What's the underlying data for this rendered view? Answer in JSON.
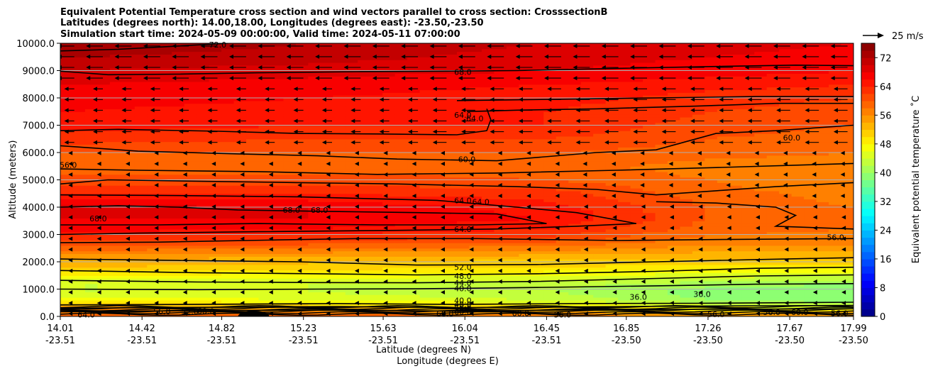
{
  "chart_data": {
    "type": "heatmap",
    "title_lines": [
      "Equivalent Potential Temperature cross section and wind vectors parallel to cross section: CrosssectionB",
      "Latitudes (degrees north): 14.00,18.00, Longitudes (degrees east): -23.50,-23.50",
      "Simulation start time: 2024-05-09 00:00:00, Valid time: 2024-05-11 07:00:00"
    ],
    "xlabel": "Latitude (degrees N)",
    "xlabel2": "Longitude (degrees E)",
    "ylabel": "Altitude (meters)",
    "ylim": [
      0,
      10000
    ],
    "xlim": [
      14.01,
      17.99
    ],
    "yticks": [
      "0.0",
      "1000.0",
      "2000.0",
      "3000.0",
      "4000.0",
      "5000.0",
      "6000.0",
      "7000.0",
      "8000.0",
      "9000.0",
      "10000.0"
    ],
    "xticks": [
      {
        "lat": "14.01",
        "lon": "-23.51"
      },
      {
        "lat": "14.42",
        "lon": "-23.51"
      },
      {
        "lat": "14.82",
        "lon": "-23.51"
      },
      {
        "lat": "15.23",
        "lon": "-23.51"
      },
      {
        "lat": "15.63",
        "lon": "-23.51"
      },
      {
        "lat": "16.04",
        "lon": "-23.51"
      },
      {
        "lat": "16.45",
        "lon": "-23.51"
      },
      {
        "lat": "16.85",
        "lon": "-23.50"
      },
      {
        "lat": "17.26",
        "lon": "-23.50"
      },
      {
        "lat": "17.67",
        "lon": "-23.50"
      },
      {
        "lat": "17.99",
        "lon": "-23.50"
      }
    ],
    "colorbar": {
      "label": "Equivalent potential temperature $^\\circ$C",
      "label_display": "Equivalent potential temperature ˚C",
      "min": 0,
      "max": 76,
      "step": 2,
      "ticks": [
        "0",
        "8",
        "16",
        "24",
        "32",
        "40",
        "48",
        "56",
        "64",
        "72"
      ]
    },
    "quiver_key": {
      "label": "25 m/s",
      "value": 25
    },
    "profile_heights": [
      0,
      300,
      600,
      900,
      1200,
      1500,
      1800,
      2100,
      2500,
      2800,
      3200,
      3600,
      4000,
      4500,
      5000,
      5500,
      6000,
      6500,
      7000,
      7500,
      8000,
      8500,
      9000,
      9500,
      10000
    ],
    "profiles": [
      {
        "x": 14.01,
        "theta_e": [
          60,
          56,
          48,
          44,
          44,
          48,
          52,
          54,
          59,
          62,
          67,
          68,
          69,
          64,
          61,
          58,
          60,
          63,
          65,
          66,
          67,
          68,
          70,
          72,
          74
        ]
      },
      {
        "x": 15.23,
        "theta_e": [
          60,
          54,
          46,
          44,
          44,
          47,
          51,
          53,
          58,
          62,
          66,
          68,
          68,
          64,
          61,
          59,
          60,
          62,
          64,
          65,
          66,
          67,
          69,
          71,
          72
        ]
      },
      {
        "x": 16.45,
        "theta_e": [
          58,
          52,
          44,
          42,
          43,
          46,
          50,
          52,
          57,
          61,
          64,
          66,
          65,
          63,
          60,
          59,
          60,
          62,
          64,
          64,
          65,
          66,
          68,
          69,
          70
        ]
      },
      {
        "x": 17.26,
        "theta_e": [
          56,
          48,
          40,
          39,
          41,
          45,
          49,
          52,
          55,
          57,
          59,
          60,
          60,
          59,
          58,
          57,
          59,
          60,
          61,
          62,
          63,
          65,
          67,
          68,
          69
        ]
      },
      {
        "x": 17.99,
        "theta_e": [
          58,
          46,
          38,
          38,
          40,
          44,
          48,
          52,
          55,
          57,
          58,
          58,
          58,
          57,
          56,
          56,
          58,
          59,
          60,
          61,
          62,
          64,
          66,
          67,
          68
        ]
      }
    ],
    "contour_labels": [
      {
        "text": "72.0",
        "x": 14.8,
        "y": 9950
      },
      {
        "text": "68.0",
        "x": 16.03,
        "y": 8950
      },
      {
        "text": "64.0",
        "x": 16.03,
        "y": 7380
      },
      {
        "text": "64.0",
        "x": 16.09,
        "y": 7250
      },
      {
        "text": "60.0",
        "x": 17.68,
        "y": 6550
      },
      {
        "text": "56.0",
        "x": 14.05,
        "y": 5550
      },
      {
        "text": "60.0",
        "x": 16.05,
        "y": 5750
      },
      {
        "text": "68.0",
        "x": 14.2,
        "y": 3580
      },
      {
        "text": "68.0",
        "x": 15.17,
        "y": 3900
      },
      {
        "text": "68.0",
        "x": 15.31,
        "y": 3900
      },
      {
        "text": "64.0",
        "x": 16.03,
        "y": 4250
      },
      {
        "text": "64.0",
        "x": 16.12,
        "y": 4200
      },
      {
        "text": "64.0",
        "x": 16.03,
        "y": 3200
      },
      {
        "text": "56.0",
        "x": 17.9,
        "y": 2900
      },
      {
        "text": "52.0",
        "x": 16.03,
        "y": 1800
      },
      {
        "text": "48.0",
        "x": 16.03,
        "y": 1480
      },
      {
        "text": "44.0",
        "x": 16.03,
        "y": 1230
      },
      {
        "text": "40.0",
        "x": 16.03,
        "y": 1020
      },
      {
        "text": "36.0",
        "x": 16.91,
        "y": 720
      },
      {
        "text": "36.0",
        "x": 17.23,
        "y": 820
      },
      {
        "text": "40.0",
        "x": 16.03,
        "y": 580
      },
      {
        "text": "48.0",
        "x": 16.03,
        "y": 440
      },
      {
        "text": "56.0",
        "x": 16.03,
        "y": 300
      },
      {
        "text": "60.0",
        "x": 16.03,
        "y": 170
      },
      {
        "text": "64.0",
        "x": 14.14,
        "y": 60
      },
      {
        "text": "56.0",
        "x": 14.52,
        "y": 180
      },
      {
        "text": "52.0",
        "x": 14.66,
        "y": 180
      },
      {
        "text": "68.0",
        "x": 14.74,
        "y": 200
      },
      {
        "text": "60.0",
        "x": 15.94,
        "y": 100
      },
      {
        "text": "60.0",
        "x": 16.32,
        "y": 120
      },
      {
        "text": "56.0",
        "x": 16.53,
        "y": 60
      },
      {
        "text": "56.0",
        "x": 17.3,
        "y": 80
      },
      {
        "text": "56.0",
        "x": 17.58,
        "y": 150
      },
      {
        "text": "60.0",
        "x": 17.72,
        "y": 150
      },
      {
        "text": "56.0",
        "x": 17.92,
        "y": 120
      }
    ],
    "contour_lines": [
      {
        "level": "72.0",
        "points": [
          [
            14.01,
            9720
          ],
          [
            14.3,
            9780
          ],
          [
            14.6,
            9900
          ],
          [
            14.85,
            10000
          ]
        ]
      },
      {
        "level": "68.0",
        "points": [
          [
            14.01,
            8980
          ],
          [
            14.25,
            8850
          ],
          [
            14.6,
            8870
          ],
          [
            15.0,
            8920
          ],
          [
            15.5,
            8960
          ],
          [
            15.95,
            8980
          ],
          [
            16.3,
            9000
          ],
          [
            16.8,
            9080
          ],
          [
            17.3,
            9150
          ],
          [
            17.7,
            9200
          ],
          [
            17.99,
            9180
          ]
        ]
      },
      {
        "level": "64.0",
        "points": [
          [
            16.05,
            7500
          ],
          [
            16.3,
            7550
          ],
          [
            16.7,
            7600
          ],
          [
            17.2,
            7700
          ],
          [
            17.6,
            7800
          ],
          [
            17.99,
            7800
          ]
        ]
      },
      {
        "level": "64.0",
        "points": [
          [
            16.0,
            7900
          ],
          [
            16.5,
            7950
          ],
          [
            17.0,
            8000
          ],
          [
            17.5,
            8050
          ],
          [
            17.99,
            8050
          ]
        ]
      },
      {
        "level": "64.0",
        "points": [
          [
            14.01,
            6800
          ],
          [
            14.3,
            6850
          ],
          [
            14.8,
            6780
          ],
          [
            15.2,
            6700
          ],
          [
            15.6,
            6680
          ],
          [
            16.0,
            6650
          ],
          [
            16.15,
            6800
          ],
          [
            16.17,
            7200
          ],
          [
            16.15,
            7600
          ]
        ]
      },
      {
        "level": "60.0",
        "points": [
          [
            14.01,
            6250
          ],
          [
            14.4,
            6050
          ],
          [
            14.9,
            5950
          ],
          [
            15.3,
            5880
          ],
          [
            15.7,
            5760
          ],
          [
            16.2,
            5700
          ],
          [
            16.7,
            6000
          ],
          [
            17.0,
            6100
          ],
          [
            17.3,
            6700
          ],
          [
            17.6,
            6800
          ],
          [
            17.99,
            7000
          ]
        ]
      },
      {
        "level": "60.0",
        "points": [
          [
            14.01,
            5400
          ],
          [
            14.4,
            5350
          ],
          [
            15.0,
            5300
          ],
          [
            15.6,
            5200
          ],
          [
            16.2,
            5250
          ],
          [
            16.8,
            5350
          ],
          [
            17.3,
            5450
          ],
          [
            17.99,
            5600
          ]
        ]
      },
      {
        "level": "56.0",
        "points": [
          [
            14.01,
            4850
          ],
          [
            14.25,
            5000
          ],
          [
            14.7,
            4950
          ],
          [
            15.2,
            4900
          ],
          [
            15.7,
            4850
          ],
          [
            16.3,
            4750
          ],
          [
            16.7,
            4650
          ],
          [
            17.0,
            4450
          ],
          [
            17.3,
            4600
          ],
          [
            17.6,
            4750
          ],
          [
            17.99,
            4900
          ]
        ]
      },
      {
        "level": "64.0",
        "points": [
          [
            14.01,
            4450
          ],
          [
            14.5,
            4430
          ],
          [
            15.2,
            4380
          ],
          [
            15.9,
            4250
          ],
          [
            16.3,
            4000
          ],
          [
            16.6,
            3800
          ],
          [
            16.9,
            3400
          ],
          [
            16.6,
            3300
          ],
          [
            16.2,
            3200
          ],
          [
            15.7,
            3150
          ],
          [
            15.0,
            3100
          ],
          [
            14.4,
            3050
          ],
          [
            14.01,
            3000
          ]
        ]
      },
      {
        "level": "68.0",
        "points": [
          [
            14.01,
            4000
          ],
          [
            14.3,
            4050
          ],
          [
            14.6,
            4000
          ],
          [
            14.9,
            3900
          ],
          [
            15.3,
            3850
          ],
          [
            15.8,
            3800
          ],
          [
            16.2,
            3750
          ],
          [
            16.45,
            3400
          ],
          [
            16.1,
            3350
          ],
          [
            15.6,
            3350
          ],
          [
            15.0,
            3400
          ],
          [
            14.5,
            3350
          ],
          [
            14.01,
            3350
          ]
        ]
      },
      {
        "level": "56.0",
        "points": [
          [
            17.0,
            4200
          ],
          [
            17.3,
            4150
          ],
          [
            17.6,
            4000
          ],
          [
            17.7,
            3700
          ],
          [
            17.6,
            3300
          ],
          [
            17.99,
            3200
          ]
        ]
      },
      {
        "level": "56.0",
        "points": [
          [
            14.01,
            2700
          ],
          [
            14.5,
            2720
          ],
          [
            15.1,
            2800
          ],
          [
            15.5,
            2850
          ],
          [
            16.1,
            2850
          ],
          [
            16.8,
            2780
          ],
          [
            17.4,
            2820
          ],
          [
            17.99,
            2850
          ]
        ]
      },
      {
        "level": "52.0",
        "points": [
          [
            14.01,
            2100
          ],
          [
            14.6,
            2050
          ],
          [
            15.2,
            2000
          ],
          [
            15.8,
            1880
          ],
          [
            16.4,
            1900
          ],
          [
            17.0,
            2000
          ],
          [
            17.5,
            2080
          ],
          [
            17.99,
            2150
          ]
        ]
      },
      {
        "level": "48.0",
        "points": [
          [
            14.01,
            1680
          ],
          [
            14.7,
            1600
          ],
          [
            15.3,
            1560
          ],
          [
            15.8,
            1520
          ],
          [
            16.4,
            1560
          ],
          [
            17.0,
            1650
          ],
          [
            17.5,
            1760
          ],
          [
            17.99,
            1800
          ]
        ]
      },
      {
        "level": "44.0",
        "points": [
          [
            14.01,
            1320
          ],
          [
            14.7,
            1260
          ],
          [
            15.3,
            1240
          ],
          [
            15.8,
            1230
          ],
          [
            16.4,
            1280
          ],
          [
            17.0,
            1390
          ],
          [
            17.5,
            1480
          ],
          [
            17.99,
            1520
          ]
        ]
      },
      {
        "level": "40.0",
        "points": [
          [
            14.01,
            1000
          ],
          [
            14.7,
            980
          ],
          [
            15.3,
            1000
          ],
          [
            15.8,
            1010
          ],
          [
            16.4,
            1060
          ],
          [
            17.0,
            1120
          ],
          [
            17.5,
            1180
          ],
          [
            17.99,
            1200
          ]
        ]
      },
      {
        "level": "48.0",
        "points": [
          [
            14.01,
            420
          ],
          [
            14.7,
            440
          ],
          [
            15.4,
            470
          ],
          [
            16.0,
            440
          ],
          [
            16.6,
            470
          ],
          [
            17.2,
            480
          ],
          [
            17.99,
            520
          ]
        ]
      },
      {
        "level": "56.0",
        "points": [
          [
            14.01,
            300
          ],
          [
            14.7,
            330
          ],
          [
            15.4,
            360
          ],
          [
            16.0,
            320
          ],
          [
            16.6,
            350
          ],
          [
            17.2,
            380
          ],
          [
            17.99,
            400
          ]
        ]
      },
      {
        "level": "60.0",
        "points": [
          [
            14.01,
            180
          ],
          [
            14.7,
            210
          ],
          [
            15.4,
            240
          ],
          [
            16.0,
            190
          ],
          [
            16.6,
            240
          ],
          [
            17.2,
            260
          ],
          [
            17.99,
            280
          ]
        ]
      }
    ]
  }
}
